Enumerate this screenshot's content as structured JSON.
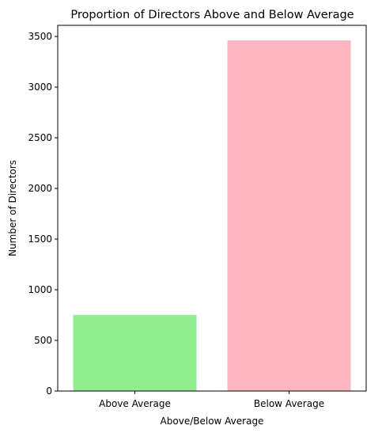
{
  "chart_data": {
    "type": "bar",
    "title": "Proportion of Directors Above and Below Average",
    "xlabel": "Above/Below Average",
    "ylabel": "Number of Directors",
    "categories": [
      "Above Average",
      "Below Average"
    ],
    "values": [
      752,
      3462
    ],
    "colors": [
      "#90ee90",
      "#ffb6c1"
    ],
    "ylim": [
      0,
      3610
    ],
    "yticks": [
      0,
      500,
      1000,
      1500,
      2000,
      2500,
      3000,
      3500
    ],
    "grid": false,
    "legend": "none"
  }
}
